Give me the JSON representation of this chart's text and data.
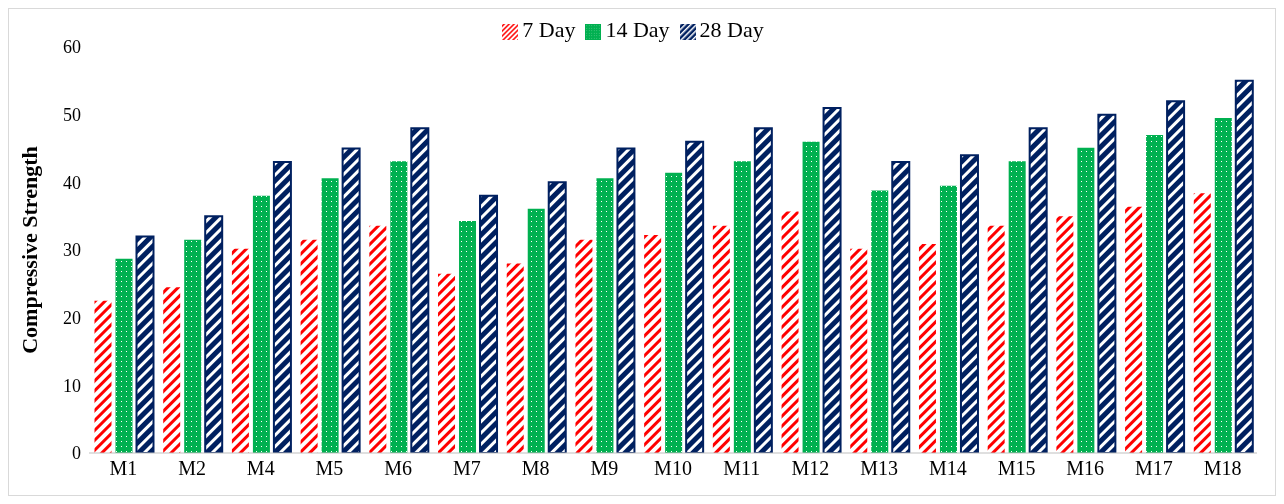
{
  "chart_data": {
    "type": "bar",
    "ylabel": "Compressive  Strength",
    "categories": [
      "M1",
      "M2",
      "M4",
      "M5",
      "M6",
      "M7",
      "M8",
      "M9",
      "M10",
      "M11",
      "M12",
      "M13",
      "M14",
      "M15",
      "M16",
      "M17",
      "M18"
    ],
    "series": [
      {
        "name": "7 Day",
        "color": "#ff0000",
        "values": [
          22.5,
          24.5,
          30.2,
          31.5,
          33.6,
          26.5,
          28,
          31.5,
          32.2,
          33.6,
          35.7,
          30.2,
          30.9,
          33.6,
          35,
          36.4,
          38.4
        ]
      },
      {
        "name": "14 Day",
        "color": "#00b050",
        "values": [
          28.7,
          31.5,
          38,
          40.6,
          43.1,
          34.3,
          36.1,
          40.6,
          41.4,
          43.1,
          46,
          38.8,
          39.5,
          43.1,
          45.1,
          47,
          49.5
        ]
      },
      {
        "name": "28 Day",
        "color": "#002060",
        "values": [
          32,
          35,
          43,
          45,
          48,
          38,
          40,
          45,
          46,
          48,
          51,
          43,
          44,
          48,
          50,
          52,
          55
        ]
      }
    ],
    "ylim": [
      0,
      60
    ],
    "yticks": [
      0,
      10,
      20,
      30,
      40,
      50,
      60
    ],
    "grid": false,
    "legend": "top"
  }
}
